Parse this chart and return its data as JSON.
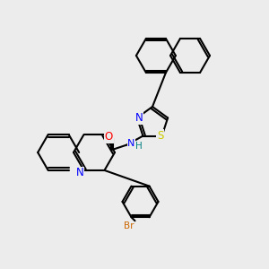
{
  "bg_color": "#ececec",
  "bond_color": "#000000",
  "bond_lw": 1.5,
  "atom_colors": {
    "N": "#0000ff",
    "O": "#ff0000",
    "S": "#cccc00",
    "Br": "#cc6600",
    "NH": "#008080",
    "C": "#000000"
  },
  "font_size": 7.5
}
